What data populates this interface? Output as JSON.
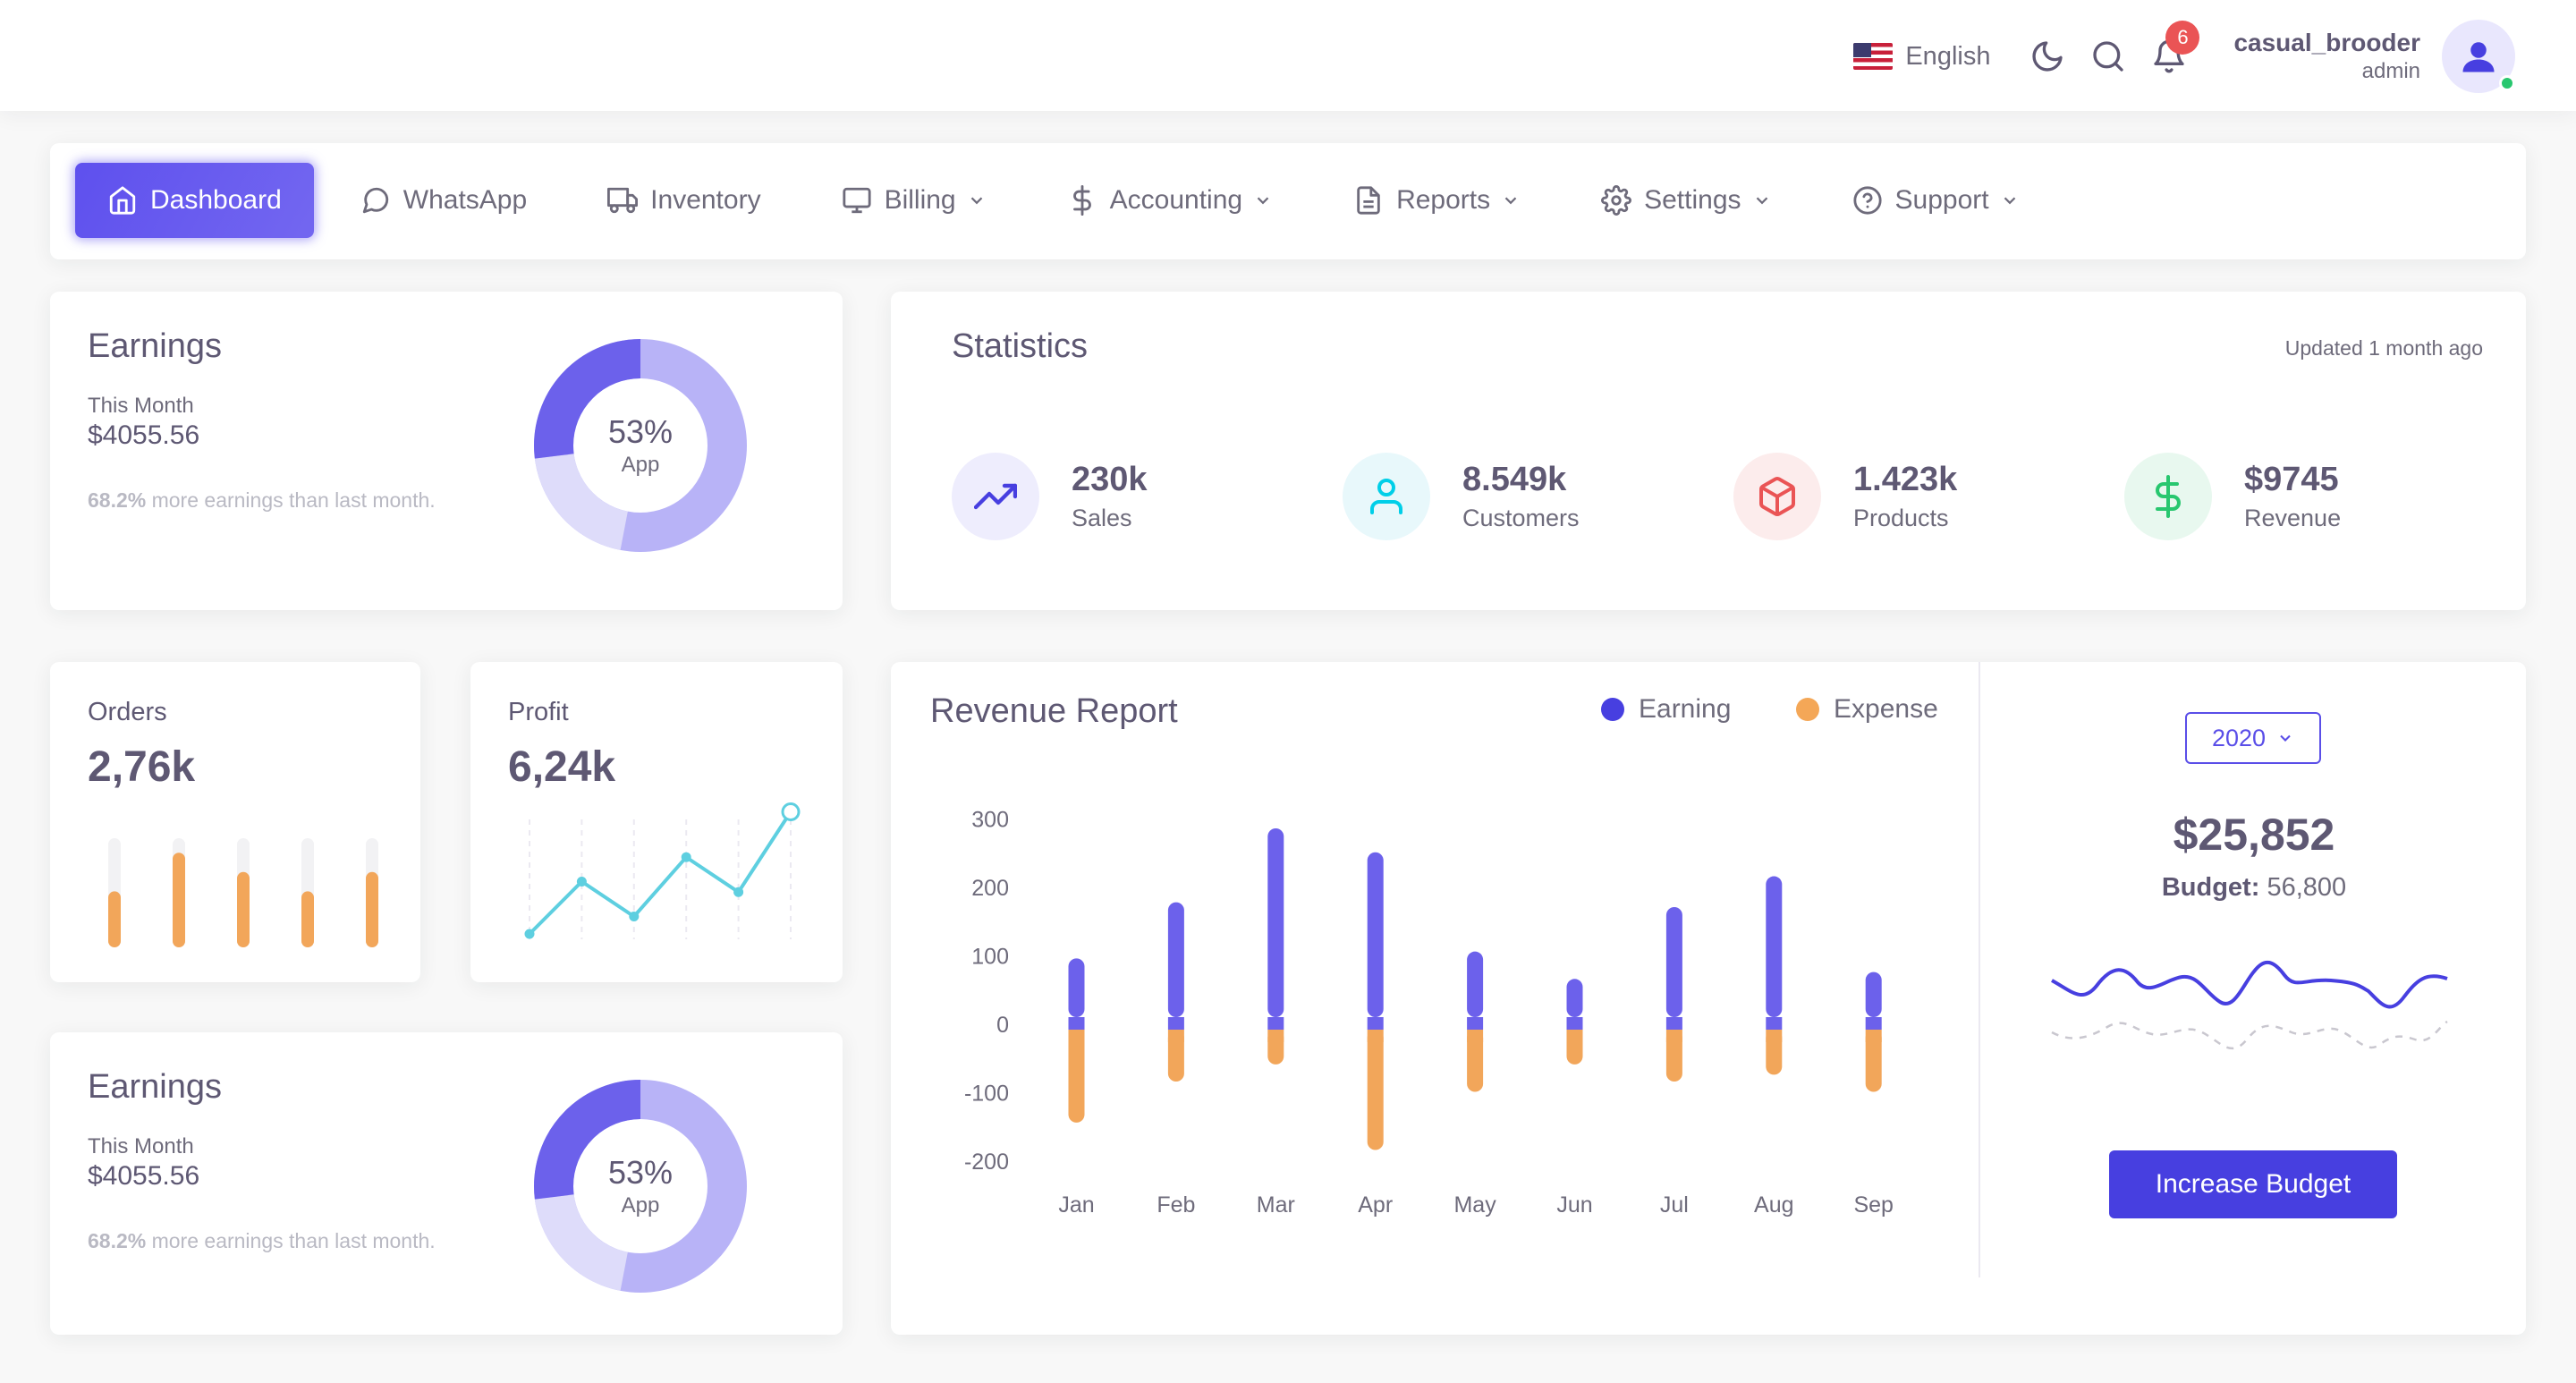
{
  "header": {
    "language": "English",
    "notifications_count": "6",
    "user_name": "casual_brooder",
    "user_role": "admin",
    "icons": [
      "us-flag-icon",
      "moon-icon",
      "search-icon",
      "bell-icon",
      "user-icon"
    ]
  },
  "nav": {
    "items": [
      {
        "label": "Dashboard",
        "icon": "home-icon",
        "dropdown": false,
        "active": true
      },
      {
        "label": "WhatsApp",
        "icon": "message-icon",
        "dropdown": false
      },
      {
        "label": "Inventory",
        "icon": "truck-icon",
        "dropdown": false
      },
      {
        "label": "Billing",
        "icon": "monitor-icon",
        "dropdown": true
      },
      {
        "label": "Accounting",
        "icon": "dollar-icon",
        "dropdown": true
      },
      {
        "label": "Reports",
        "icon": "file-icon",
        "dropdown": true
      },
      {
        "label": "Settings",
        "icon": "gear-icon",
        "dropdown": true
      },
      {
        "label": "Support",
        "icon": "help-icon",
        "dropdown": true
      }
    ]
  },
  "earnings": {
    "title": "Earnings",
    "period": "This Month",
    "amount": "$4055.56",
    "note_pct": "68.2%",
    "note_text": " more earnings than last month.",
    "donut_pct": "53%",
    "donut_label": "App",
    "donut_segments": [
      0.53,
      0.2,
      0.27
    ]
  },
  "statistics": {
    "title": "Statistics",
    "updated": "Updated 1 month ago",
    "items": [
      {
        "value": "230k",
        "label": "Sales",
        "icon": "trending-up-icon"
      },
      {
        "value": "8.549k",
        "label": "Customers",
        "icon": "user-icon"
      },
      {
        "value": "1.423k",
        "label": "Products",
        "icon": "box-icon"
      },
      {
        "value": "$9745",
        "label": "Revenue",
        "icon": "dollar-icon"
      }
    ]
  },
  "orders": {
    "title": "Orders",
    "value": "2,76k",
    "bar_fill": [
      0.45,
      0.85,
      0.65,
      0.45,
      0.65
    ]
  },
  "profit": {
    "title": "Profit",
    "value": "6,24k",
    "line_values": [
      0,
      15,
      5,
      22,
      12,
      35
    ]
  },
  "revenue": {
    "title": "Revenue Report",
    "legend_earning": "Earning",
    "legend_expense": "Expense",
    "colors": {
      "earning": "#7367f0",
      "expense": "#ff9f43"
    },
    "year": "2020",
    "total": "$25,852",
    "budget_label": "Budget:",
    "budget_value": "56,800",
    "button": "Increase Budget"
  },
  "chart_data": {
    "type": "bar",
    "categories": [
      "Jan",
      "Feb",
      "Mar",
      "Apr",
      "May",
      "Jun",
      "Jul",
      "Aug",
      "Sep"
    ],
    "series": [
      {
        "name": "Earning",
        "values": [
          95,
          177,
          285,
          250,
          105,
          65,
          170,
          215,
          75
        ]
      },
      {
        "name": "Expense",
        "values": [
          -145,
          -85,
          -60,
          -185,
          -100,
          -60,
          -85,
          -75,
          -100
        ]
      }
    ],
    "yticks": [
      300,
      200,
      100,
      0,
      -100,
      -200
    ],
    "ylim": [
      -200,
      300
    ]
  }
}
